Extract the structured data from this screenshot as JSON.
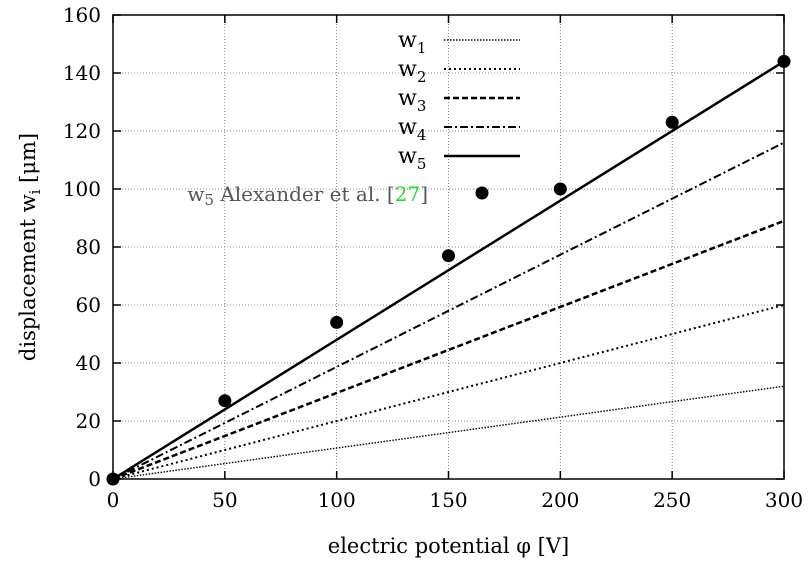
{
  "chart_data": {
    "type": "line",
    "title": "",
    "xlabel": "electric potential φ [V]",
    "ylabel": "displacement w",
    "ylabel_sub": "i",
    "ylabel_unit": " [μm]",
    "xlim": [
      0,
      300
    ],
    "ylim": [
      0,
      160
    ],
    "xticks": [
      0,
      50,
      100,
      150,
      200,
      250,
      300
    ],
    "yticks": [
      0,
      20,
      40,
      60,
      80,
      100,
      120,
      140,
      160
    ],
    "grid": true,
    "legend_position": "top-center",
    "series": [
      {
        "name": "w",
        "sub": "1",
        "style": "dotted-fine",
        "x": [
          0,
          300
        ],
        "y": [
          0,
          32
        ]
      },
      {
        "name": "w",
        "sub": "2",
        "style": "dotted",
        "x": [
          0,
          300
        ],
        "y": [
          0,
          60
        ]
      },
      {
        "name": "w",
        "sub": "3",
        "style": "dashed",
        "x": [
          0,
          300
        ],
        "y": [
          0,
          89
        ]
      },
      {
        "name": "w",
        "sub": "4",
        "style": "dash-dot",
        "x": [
          0,
          300
        ],
        "y": [
          0,
          116
        ]
      },
      {
        "name": "w",
        "sub": "5",
        "style": "solid",
        "x": [
          0,
          300
        ],
        "y": [
          0,
          144
        ]
      }
    ],
    "scatter": {
      "name_prefix": "w",
      "name_sub": "5",
      "name_text": " Alexander et al. [",
      "name_ref": "27",
      "name_suffix": "]",
      "ref_color": "#22dd22",
      "x": [
        0,
        50,
        100,
        150,
        200,
        250,
        300
      ],
      "y": [
        0,
        27,
        54,
        77,
        100,
        123,
        144
      ]
    }
  }
}
